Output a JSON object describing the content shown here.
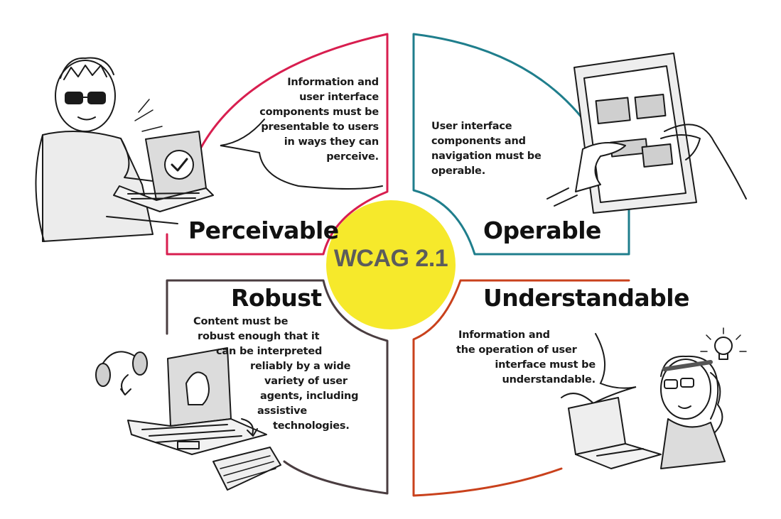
{
  "colors": {
    "perceivable": "#d81e4f",
    "operable": "#1f7e8c",
    "robust": "#4a3d40",
    "understandable": "#c9411c",
    "center_fill": "#f6e92b",
    "center_text": "#5c5c5c"
  },
  "center": {
    "title": "WCAG 2.1"
  },
  "quadrants": {
    "perceivable": {
      "heading": "Perceivable",
      "lines": [
        "Information and",
        "user interface",
        "components must be",
        "presentable to users",
        "in ways they can",
        "perceive."
      ]
    },
    "operable": {
      "heading": "Operable",
      "lines": [
        "User interface",
        "components and",
        "navigation must be",
        "operable."
      ]
    },
    "robust": {
      "heading": "Robust",
      "lines": [
        "Content must be",
        "robust enough that it",
        "can be interpreted",
        "reliably by a wide",
        "variety of user",
        "agents, including",
        "assistive",
        "technologies."
      ]
    },
    "understandable": {
      "heading": "Understandable",
      "lines": [
        "Information and",
        "the operation of user",
        "interface must be",
        "understandable."
      ]
    }
  },
  "illustrations": {
    "perceivable": "person-with-sunglasses-at-laptop-illustration",
    "operable": "hands-using-tablet-illustration",
    "robust": "laptop-headphones-keyboard-illustration",
    "understandable": "person-with-lightbulb-at-laptop-illustration"
  }
}
